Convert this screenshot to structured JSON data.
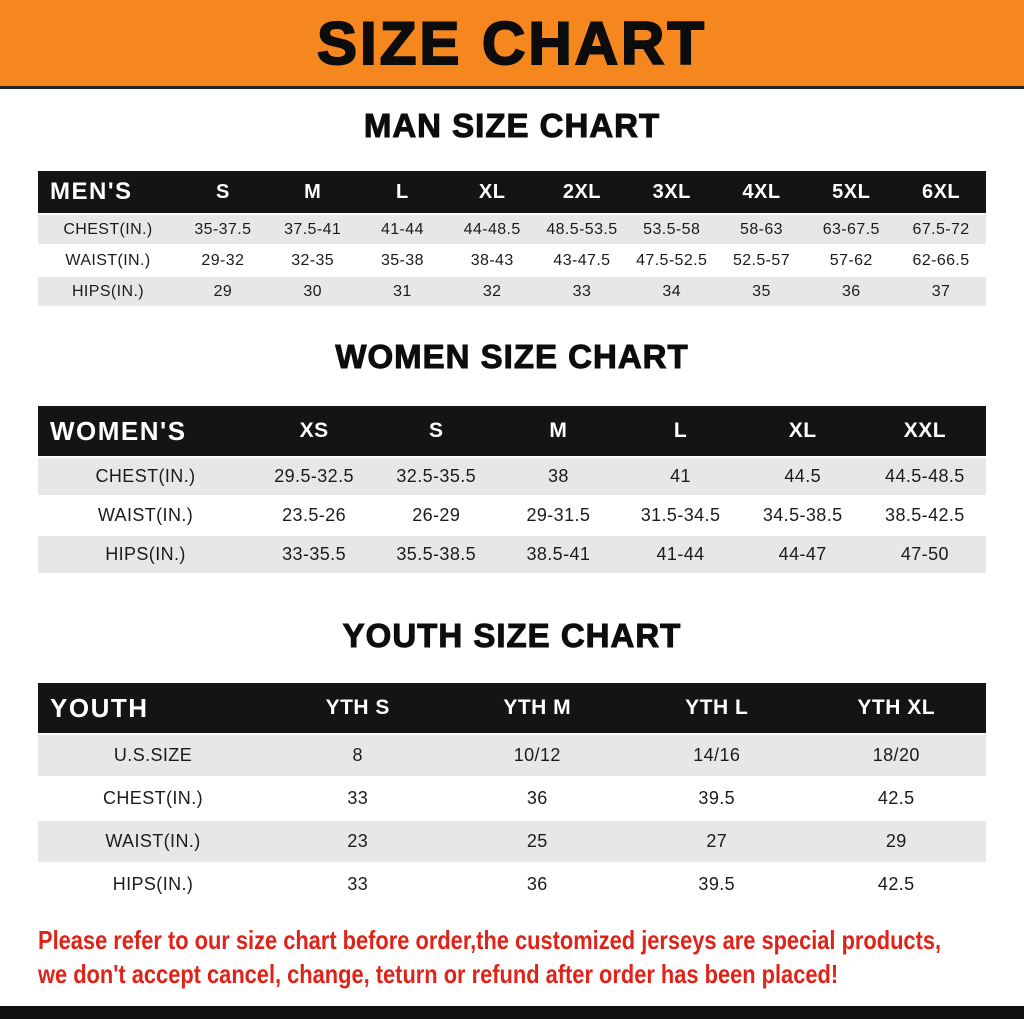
{
  "title": "SIZE CHART",
  "men": {
    "heading": "MAN SIZE CHART",
    "corner": "MEN'S",
    "columns": [
      "S",
      "M",
      "L",
      "XL",
      "2XL",
      "3XL",
      "4XL",
      "5XL",
      "6XL"
    ],
    "rows": [
      {
        "label": "CHEST(IN.)",
        "values": [
          "35-37.5",
          "37.5-41",
          "41-44",
          "44-48.5",
          "48.5-53.5",
          "53.5-58",
          "58-63",
          "63-67.5",
          "67.5-72"
        ]
      },
      {
        "label": "WAIST(IN.)",
        "values": [
          "29-32",
          "32-35",
          "35-38",
          "38-43",
          "43-47.5",
          "47.5-52.5",
          "52.5-57",
          "57-62",
          "62-66.5"
        ]
      },
      {
        "label": "HIPS(IN.)",
        "values": [
          "29",
          "30",
          "31",
          "32",
          "33",
          "34",
          "35",
          "36",
          "37"
        ]
      }
    ]
  },
  "women": {
    "heading": "WOMEN SIZE CHART",
    "corner": "WOMEN'S",
    "columns": [
      "XS",
      "S",
      "M",
      "L",
      "XL",
      "XXL"
    ],
    "rows": [
      {
        "label": "CHEST(IN.)",
        "values": [
          "29.5-32.5",
          "32.5-35.5",
          "38",
          "41",
          "44.5",
          "44.5-48.5"
        ]
      },
      {
        "label": "WAIST(IN.)",
        "values": [
          "23.5-26",
          "26-29",
          "29-31.5",
          "31.5-34.5",
          "34.5-38.5",
          "38.5-42.5"
        ]
      },
      {
        "label": "HIPS(IN.)",
        "values": [
          "33-35.5",
          "35.5-38.5",
          "38.5-41",
          "41-44",
          "44-47",
          "47-50"
        ]
      }
    ]
  },
  "youth": {
    "heading": "YOUTH SIZE CHART",
    "corner": "YOUTH",
    "columns": [
      "YTH S",
      "YTH M",
      "YTH L",
      "YTH XL"
    ],
    "rows": [
      {
        "label": "U.S.SIZE",
        "values": [
          "8",
          "10/12",
          "14/16",
          "18/20"
        ]
      },
      {
        "label": "CHEST(IN.)",
        "values": [
          "33",
          "36",
          "39.5",
          "42.5"
        ]
      },
      {
        "label": "WAIST(IN.)",
        "values": [
          "23",
          "25",
          "27",
          "29"
        ]
      },
      {
        "label": "HIPS(IN.)",
        "values": [
          "33",
          "36",
          "39.5",
          "42.5"
        ]
      }
    ]
  },
  "note": {
    "line1": "Please refer to our size chart before order,the customized jerseys are special products,",
    "line2": "we don't accept cancel, change, teturn or refund after order has been placed!"
  },
  "colors": {
    "header_orange": "#F6871F",
    "table_header_black": "#141414",
    "row_gray": "#E7E7E7",
    "note_red": "#E02318"
  }
}
